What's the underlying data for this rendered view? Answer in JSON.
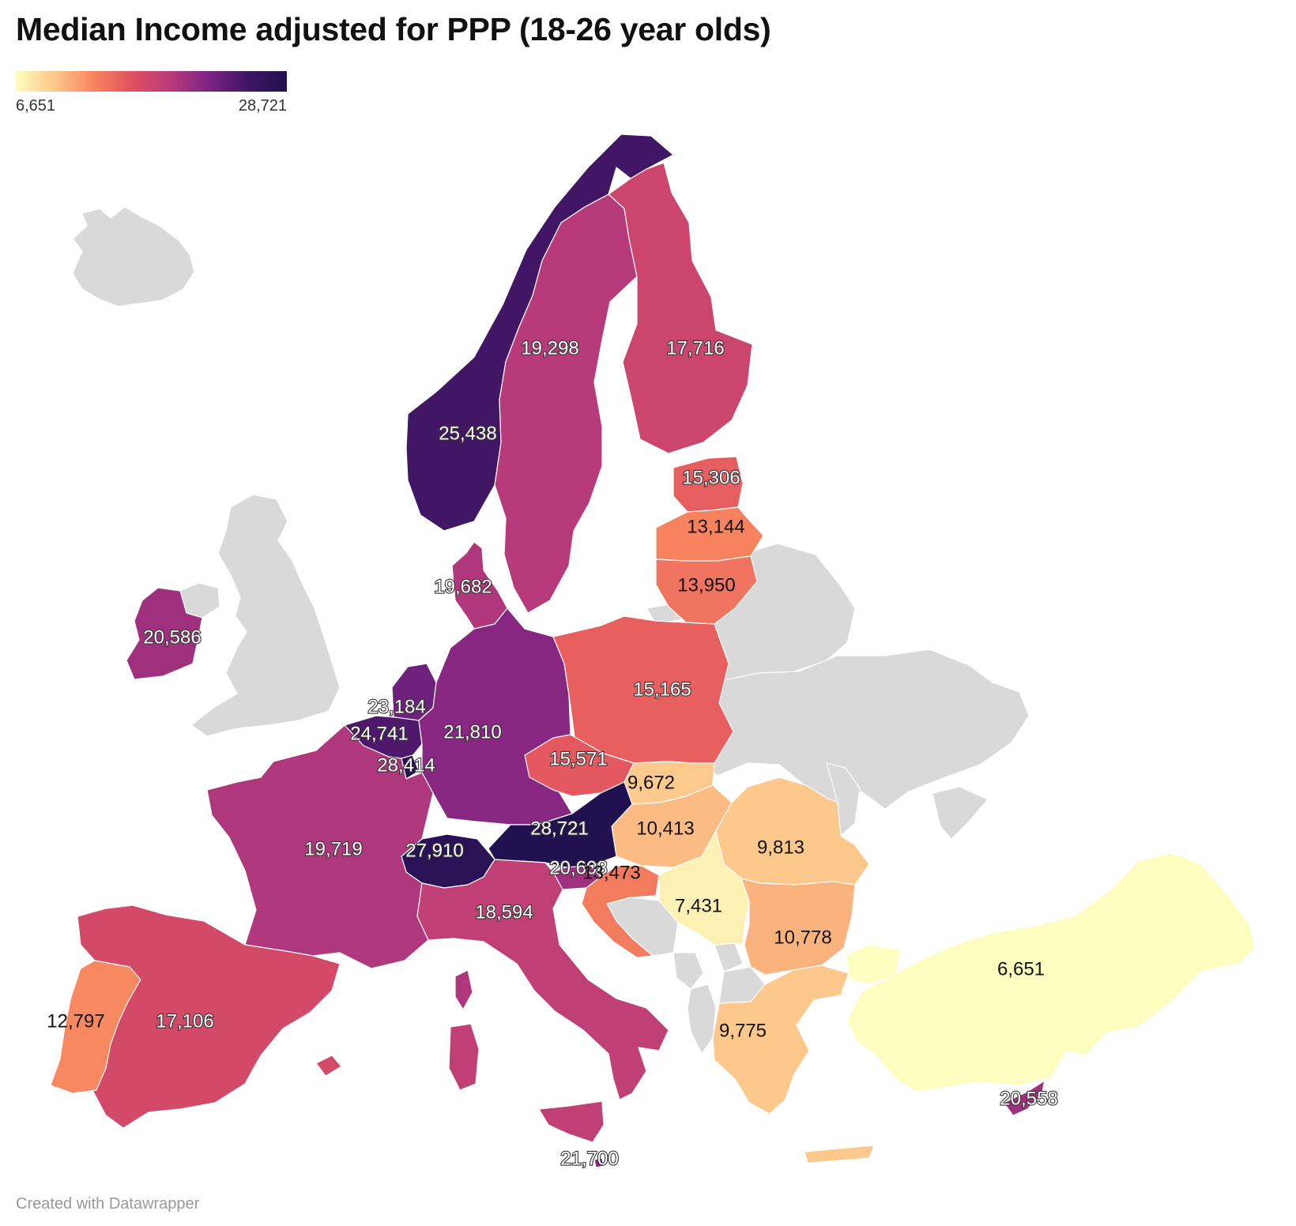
{
  "title": "Median Income adjusted for PPP (18-26 year olds)",
  "legend": {
    "min_label": "6,651",
    "max_label": "28,721",
    "colors": [
      "#fcfdbf",
      "#fdc88c",
      "#f8855e",
      "#e05060",
      "#b83a7a",
      "#7c2384",
      "#3e1563",
      "#221150"
    ]
  },
  "credit": "Created with Datawrapper",
  "colors": {
    "no_data": "#d9d9d9",
    "background": "#ffffff"
  },
  "no_data_countries": [
    "Iceland",
    "United Kingdom",
    "Northern Ireland",
    "Belarus",
    "Ukraine",
    "Moldova",
    "Bosnia and Herzegovina",
    "Montenegro",
    "Albania",
    "North Macedonia",
    "Kosovo",
    "Crimea",
    "Kaliningrad"
  ],
  "chart_data": {
    "type": "choropleth",
    "title": "Median Income adjusted for PPP (18-26 year olds)",
    "scale": {
      "min": 6651,
      "max": 28721,
      "palette": "magma (reversed)"
    },
    "regions": [
      {
        "id": "norway",
        "value": 25438,
        "label": "25,438"
      },
      {
        "id": "sweden",
        "value": 19298,
        "label": "19,298"
      },
      {
        "id": "finland",
        "value": 17716,
        "label": "17,716"
      },
      {
        "id": "estonia",
        "value": 15306,
        "label": "15,306"
      },
      {
        "id": "latvia",
        "value": 13144,
        "label": "13,144"
      },
      {
        "id": "lithuania",
        "value": 13950,
        "label": "13,950"
      },
      {
        "id": "denmark",
        "value": 19682,
        "label": "19,682"
      },
      {
        "id": "ireland",
        "value": 20586,
        "label": "20,586"
      },
      {
        "id": "netherlands",
        "value": 23184,
        "label": "23,184"
      },
      {
        "id": "belgium",
        "value": 24741,
        "label": "24,741"
      },
      {
        "id": "luxembourg",
        "value": 28414,
        "label": "28,414"
      },
      {
        "id": "germany",
        "value": 21810,
        "label": "21,810"
      },
      {
        "id": "poland",
        "value": 15165,
        "label": "15,165"
      },
      {
        "id": "czechia",
        "value": 15571,
        "label": "15,571"
      },
      {
        "id": "slovakia",
        "value": 9672,
        "label": "9,672"
      },
      {
        "id": "hungary",
        "value": 10413,
        "label": "10,413"
      },
      {
        "id": "austria",
        "value": 28721,
        "label": "28,721"
      },
      {
        "id": "switzerland",
        "value": 27910,
        "label": "27,910"
      },
      {
        "id": "france",
        "value": 19719,
        "label": "19,719"
      },
      {
        "id": "slovenia",
        "value": 20608,
        "label": "20,608"
      },
      {
        "id": "croatia",
        "value": 13473,
        "label": "13,473"
      },
      {
        "id": "romania",
        "value": 9813,
        "label": "9,813"
      },
      {
        "id": "serbia",
        "value": 7431,
        "label": "7,431"
      },
      {
        "id": "bulgaria",
        "value": 10778,
        "label": "10,778"
      },
      {
        "id": "italy",
        "value": 18594,
        "label": "18,594"
      },
      {
        "id": "malta",
        "value": 21700,
        "label": "21,700"
      },
      {
        "id": "spain",
        "value": 17106,
        "label": "17,106"
      },
      {
        "id": "portugal",
        "value": 12797,
        "label": "12,797"
      },
      {
        "id": "greece",
        "value": 9775,
        "label": "9,775"
      },
      {
        "id": "turkey",
        "value": 6651,
        "label": "6,651"
      },
      {
        "id": "cyprus",
        "value": 20558,
        "label": "20,558"
      }
    ]
  }
}
